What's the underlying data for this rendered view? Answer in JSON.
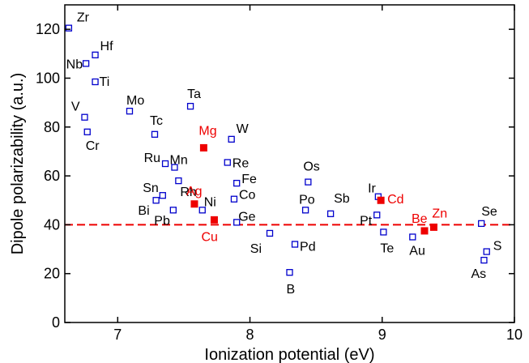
{
  "chart_data": {
    "type": "scatter",
    "xlabel": "Ionization potential (eV)",
    "ylabel": "Dipole polarizability (a.u.)",
    "xlim": [
      6.6,
      10
    ],
    "ylim": [
      0,
      130
    ],
    "xticks": [
      7,
      8,
      9,
      10
    ],
    "yticks": [
      0,
      20,
      40,
      60,
      80,
      100,
      120
    ],
    "grid": false,
    "reference_line": {
      "y": 40,
      "color": "#ee0000",
      "style": "dashed"
    },
    "colors": {
      "hollow": "#0000cc",
      "filled": "#ee0000"
    },
    "series": [
      {
        "marker": "hollow-square",
        "color": "#0000cc",
        "points": [
          {
            "label": "Zr",
            "x": 6.63,
            "y": 120.5
          },
          {
            "label": "Hf",
            "x": 6.83,
            "y": 109.5
          },
          {
            "label": "Nb",
            "x": 6.76,
            "y": 106
          },
          {
            "label": "Ti",
            "x": 6.83,
            "y": 98.5
          },
          {
            "label": "Mo",
            "x": 7.09,
            "y": 86.5
          },
          {
            "label": "Ta",
            "x": 7.55,
            "y": 88.5
          },
          {
            "label": "V",
            "x": 6.75,
            "y": 84
          },
          {
            "label": "Cr",
            "x": 6.77,
            "y": 78
          },
          {
            "label": "Tc",
            "x": 7.28,
            "y": 77
          },
          {
            "label": "W",
            "x": 7.86,
            "y": 75
          },
          {
            "label": "Re",
            "x": 7.83,
            "y": 65.5
          },
          {
            "label": "Ru",
            "x": 7.36,
            "y": 65
          },
          {
            "label": "Mn",
            "x": 7.43,
            "y": 63.5
          },
          {
            "label": "Rh",
            "x": 7.46,
            "y": 58
          },
          {
            "label": "Os",
            "x": 8.44,
            "y": 57.5
          },
          {
            "label": "Fe",
            "x": 7.9,
            "y": 57
          },
          {
            "label": "Sn",
            "x": 7.34,
            "y": 52
          },
          {
            "label": "Bi",
            "x": 7.29,
            "y": 50
          },
          {
            "label": "Co",
            "x": 7.88,
            "y": 50.5
          },
          {
            "label": "Ir",
            "x": 8.97,
            "y": 51.5
          },
          {
            "label": "Pb",
            "x": 7.42,
            "y": 46
          },
          {
            "label": "Ni",
            "x": 7.64,
            "y": 46
          },
          {
            "label": "Po",
            "x": 8.42,
            "y": 46
          },
          {
            "label": "Sb",
            "x": 8.61,
            "y": 44.5
          },
          {
            "label": "Pt",
            "x": 8.96,
            "y": 44
          },
          {
            "label": "Ge",
            "x": 7.9,
            "y": 41
          },
          {
            "label": "Se",
            "x": 9.75,
            "y": 40.5
          },
          {
            "label": "Te",
            "x": 9.01,
            "y": 37
          },
          {
            "label": "Si",
            "x": 8.15,
            "y": 36.5
          },
          {
            "label": "Au",
            "x": 9.23,
            "y": 35
          },
          {
            "label": "Pd",
            "x": 8.34,
            "y": 32
          },
          {
            "label": "S",
            "x": 9.79,
            "y": 29
          },
          {
            "label": "As",
            "x": 9.77,
            "y": 25.5
          },
          {
            "label": "B",
            "x": 8.3,
            "y": 20.5
          }
        ]
      },
      {
        "marker": "filled-square",
        "color": "#ee0000",
        "points": [
          {
            "label": "Mg",
            "x": 7.65,
            "y": 71.5
          },
          {
            "label": "Cd",
            "x": 8.99,
            "y": 50
          },
          {
            "label": "Ag",
            "x": 7.58,
            "y": 48.5
          },
          {
            "label": "Cu",
            "x": 7.73,
            "y": 42
          },
          {
            "label": "Be",
            "x": 9.32,
            "y": 37.5
          },
          {
            "label": "Zn",
            "x": 9.39,
            "y": 39
          }
        ]
      }
    ]
  }
}
